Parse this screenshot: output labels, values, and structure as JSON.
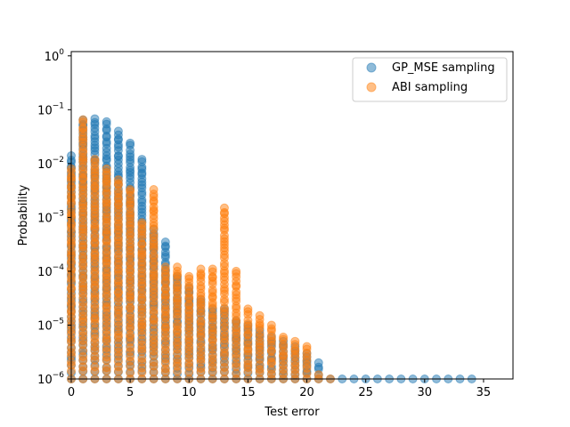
{
  "chart_data": {
    "type": "scatter",
    "xlabel": "Test error",
    "ylabel": "Probability",
    "xlim": [
      0,
      37.5
    ],
    "ylim": [
      1e-06,
      1.2
    ],
    "yscale": "log",
    "x_ticks": [
      "0",
      "5",
      "10",
      "15",
      "20",
      "25",
      "30",
      "35"
    ],
    "y_ticks": [
      {
        "base": "10",
        "exp": "0"
      },
      {
        "base": "10",
        "exp": "−1"
      },
      {
        "base": "10",
        "exp": "−2"
      },
      {
        "base": "10",
        "exp": "−3"
      },
      {
        "base": "10",
        "exp": "−4"
      },
      {
        "base": "10",
        "exp": "−5"
      },
      {
        "base": "10",
        "exp": "−6"
      }
    ],
    "legend": {
      "placement": "upper-right"
    },
    "series": [
      {
        "name": "GP_MSE sampling",
        "color": "#1f77b4",
        "columns": [
          {
            "x": 0,
            "max": 0.014
          },
          {
            "x": 1,
            "max": 0.065
          },
          {
            "x": 2,
            "max": 0.068
          },
          {
            "x": 3,
            "max": 0.06
          },
          {
            "x": 4,
            "max": 0.04
          },
          {
            "x": 5,
            "max": 0.024
          },
          {
            "x": 6,
            "max": 0.012
          },
          {
            "x": 7,
            "max": 0.0006
          },
          {
            "x": 8,
            "max": 0.00035
          },
          {
            "x": 9,
            "max": 8e-05
          },
          {
            "x": 10,
            "max": 5e-05
          },
          {
            "x": 11,
            "max": 3e-05
          },
          {
            "x": 12,
            "max": 2e-05
          },
          {
            "x": 13,
            "max": 2e-05
          },
          {
            "x": 14,
            "max": 1.2e-05
          },
          {
            "x": 15,
            "max": 1e-05
          },
          {
            "x": 16,
            "max": 8e-06
          },
          {
            "x": 17,
            "max": 6e-06
          },
          {
            "x": 18,
            "max": 5e-06
          },
          {
            "x": 19,
            "max": 4e-06
          },
          {
            "x": 20,
            "max": 3e-06
          },
          {
            "x": 21,
            "max": 2e-06
          },
          {
            "x": 22,
            "max": 1e-06
          },
          {
            "x": 23,
            "max": 1e-06
          },
          {
            "x": 24,
            "max": 1e-06
          },
          {
            "x": 25,
            "max": 1e-06
          },
          {
            "x": 26,
            "max": 1e-06
          },
          {
            "x": 27,
            "max": 1e-06
          },
          {
            "x": 28,
            "max": 1e-06
          },
          {
            "x": 29,
            "max": 1e-06
          },
          {
            "x": 30,
            "max": 1e-06
          },
          {
            "x": 31,
            "max": 1e-06
          },
          {
            "x": 32,
            "max": 1e-06
          },
          {
            "x": 33,
            "max": 1e-06
          },
          {
            "x": 34,
            "max": 1e-06
          }
        ]
      },
      {
        "name": "ABI sampling",
        "color": "#ff7f0e",
        "columns": [
          {
            "x": 0,
            "max": 0.008
          },
          {
            "x": 1,
            "max": 0.065
          },
          {
            "x": 2,
            "max": 0.012
          },
          {
            "x": 3,
            "max": 0.008
          },
          {
            "x": 4,
            "max": 0.005
          },
          {
            "x": 5,
            "max": 0.0033
          },
          {
            "x": 6,
            "max": 0.0008
          },
          {
            "x": 7,
            "max": 0.0033
          },
          {
            "x": 8,
            "max": 0.00012
          },
          {
            "x": 9,
            "max": 0.00012
          },
          {
            "x": 10,
            "max": 8e-05
          },
          {
            "x": 11,
            "max": 0.00011
          },
          {
            "x": 12,
            "max": 0.00011
          },
          {
            "x": 13,
            "max": 0.0015
          },
          {
            "x": 14,
            "max": 0.0001
          },
          {
            "x": 15,
            "max": 2e-05
          },
          {
            "x": 16,
            "max": 1.5e-05
          },
          {
            "x": 17,
            "max": 1e-05
          },
          {
            "x": 18,
            "max": 6e-06
          },
          {
            "x": 19,
            "max": 5e-06
          },
          {
            "x": 20,
            "max": 4e-06
          },
          {
            "x": 21,
            "max": 1.2e-06
          },
          {
            "x": 22,
            "max": 1e-06
          }
        ]
      }
    ]
  }
}
